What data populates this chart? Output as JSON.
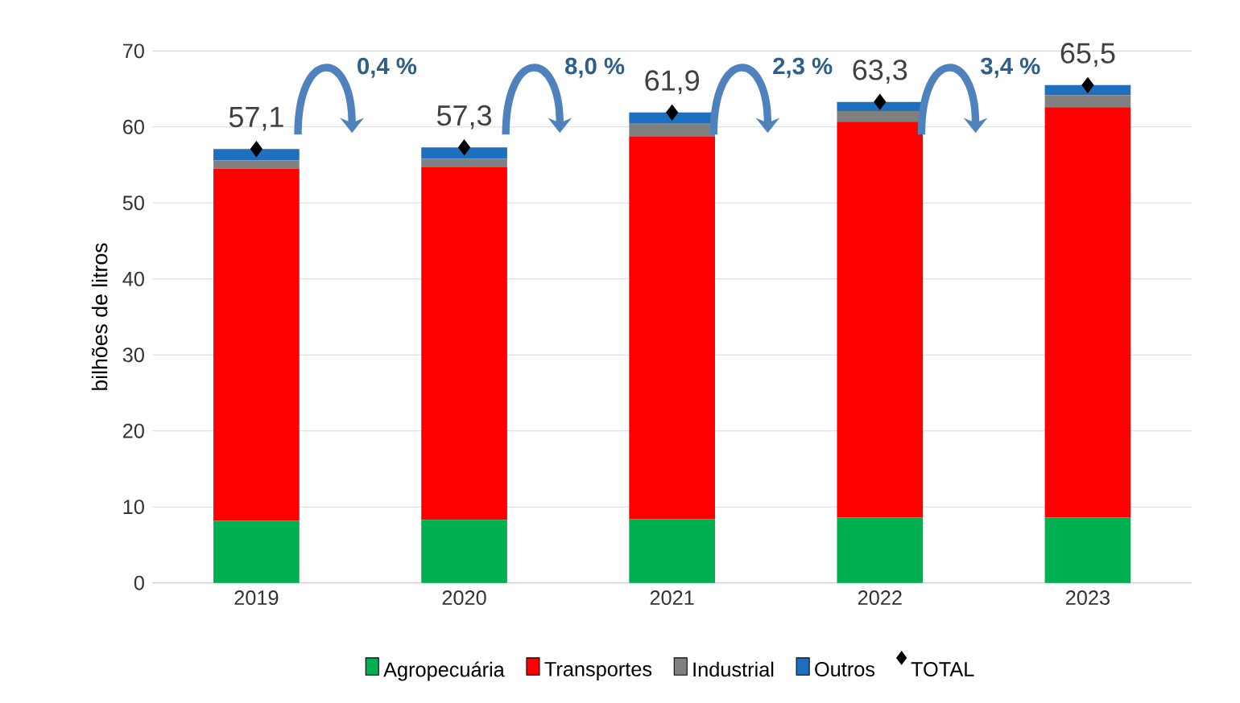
{
  "chart_data": {
    "type": "bar",
    "stacked": true,
    "ylabel": "bilhões de litros",
    "categories": [
      "2019",
      "2020",
      "2021",
      "2022",
      "2023"
    ],
    "series": [
      {
        "name": "Agropecuária",
        "color": "#00b050",
        "values": [
          8.2,
          8.3,
          8.4,
          8.6,
          8.6
        ]
      },
      {
        "name": "Transportes",
        "color": "#ff0000",
        "values": [
          46.3,
          46.4,
          50.3,
          52.1,
          54.0
        ]
      },
      {
        "name": "Industrial",
        "color": "#808080",
        "values": [
          1.1,
          1.1,
          1.8,
          1.4,
          1.6
        ]
      },
      {
        "name": "Outros",
        "color": "#1f6fbf",
        "values": [
          1.5,
          1.5,
          1.4,
          1.2,
          1.3
        ]
      },
      {
        "name": "TOTAL",
        "type": "scatter",
        "marker": "diamond",
        "color": "#000000",
        "values": [
          57.1,
          57.3,
          61.9,
          63.3,
          65.5
        ],
        "value_labels": [
          "57,1",
          "57,3",
          "61,9",
          "63,3",
          "65,5"
        ]
      }
    ],
    "annotations": [
      "0,4 %",
      "8,0 %",
      "2,3 %",
      "3,4 %"
    ],
    "ylim": [
      0,
      70
    ],
    "yticks": [
      0,
      10,
      20,
      30,
      40,
      50,
      60,
      70
    ],
    "grid": "y",
    "legend": "bottom"
  }
}
